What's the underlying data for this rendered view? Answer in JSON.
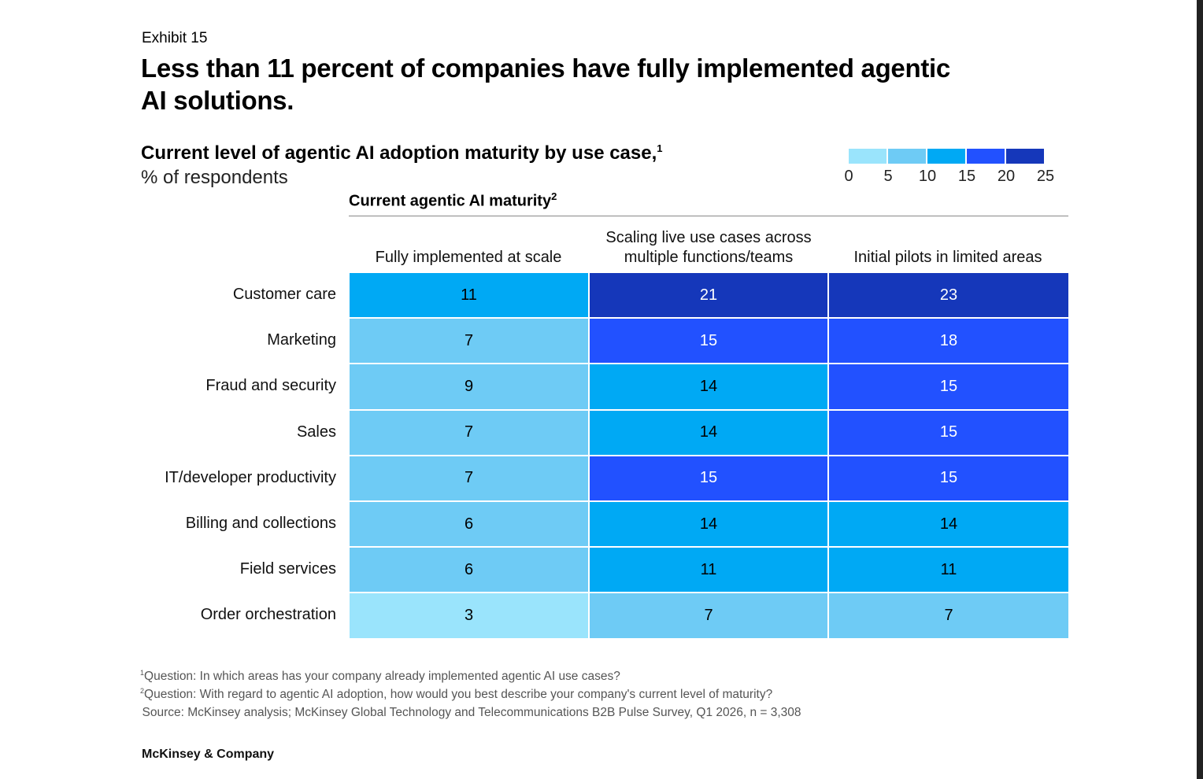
{
  "exhibit": "Exhibit 15",
  "title": "Less than 11 percent of companies have fully implemented agentic AI solutions.",
  "subtitle": "Current level of agentic AI adoption maturity by use case,",
  "subtitle_note": "1",
  "unit": "% of respondents",
  "column_group": "Current agentic AI maturity",
  "column_group_note": "2",
  "chart_data": {
    "type": "heatmap",
    "title": "Current level of agentic AI adoption maturity by use case",
    "columns": [
      "Fully implemented at scale",
      "Scaling live use cases across multiple functions/teams",
      "Initial pilots in limited areas"
    ],
    "rows": [
      "Customer care",
      "Marketing",
      "Fraud and security",
      "Sales",
      "IT/developer productivity",
      "Billing and collections",
      "Field services",
      "Order orchestration"
    ],
    "values": [
      [
        11,
        21,
        23
      ],
      [
        7,
        15,
        18
      ],
      [
        9,
        14,
        15
      ],
      [
        7,
        14,
        15
      ],
      [
        7,
        15,
        15
      ],
      [
        6,
        14,
        14
      ],
      [
        6,
        11,
        11
      ],
      [
        3,
        7,
        7
      ]
    ],
    "legend": {
      "ticks": [
        "0",
        "5",
        "10",
        "15",
        "20",
        "25"
      ],
      "bins": [
        0,
        5,
        10,
        15,
        20,
        25
      ],
      "colors": [
        "#9ae4fc",
        "#6ecbf5",
        "#00a9f4",
        "#2251ff",
        "#1537ba"
      ],
      "placement": "top-right"
    }
  },
  "footnotes": [
    {
      "mark": "1",
      "text": "Question: In which areas has your company already implemented agentic AI use cases?"
    },
    {
      "mark": "2",
      "text": "Question: With regard to agentic AI adoption, how would you best describe your company's current level of maturity?"
    },
    {
      "mark": "",
      "text": "Source: McKinsey analysis; McKinsey Global Technology and Telecommunications B2B Pulse Survey, Q1 2026, n = 3,308"
    }
  ],
  "brand": "McKinsey & Company"
}
